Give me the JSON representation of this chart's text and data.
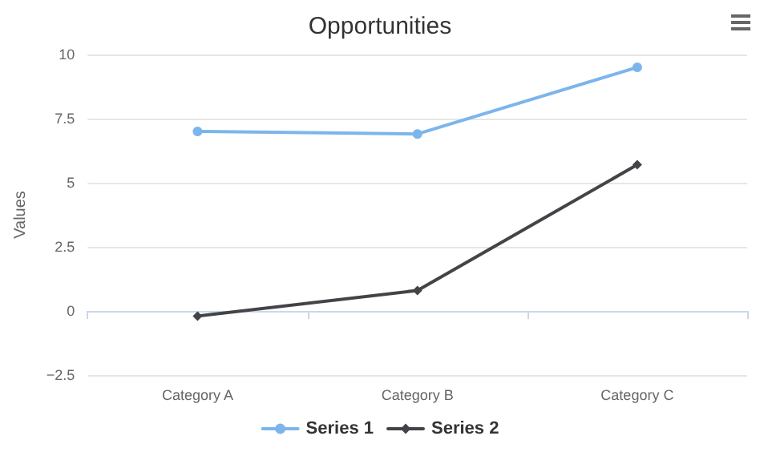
{
  "chart_data": {
    "type": "line",
    "title": "Opportunities",
    "ylabel": "Values",
    "categories": [
      "Category A",
      "Category B",
      "Category C"
    ],
    "series": [
      {
        "name": "Series 1",
        "color": "#7cb5ec",
        "marker": "circle",
        "values": [
          7,
          6.9,
          9.5
        ]
      },
      {
        "name": "Series 2",
        "color": "#434348",
        "marker": "diamond",
        "values": [
          -0.2,
          0.8,
          5.7
        ]
      }
    ],
    "ylim": [
      -2.5,
      10
    ],
    "yticks": [
      {
        "value": -2.5,
        "label": "−2.5"
      },
      0,
      2.5,
      5,
      7.5,
      10
    ],
    "grid": "y",
    "legend": "bottom"
  }
}
